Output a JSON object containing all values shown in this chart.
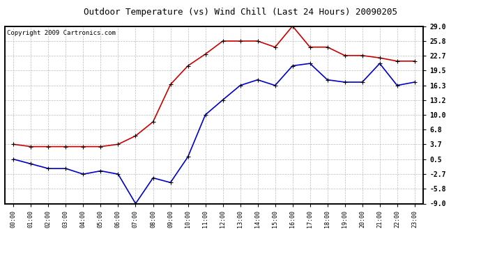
{
  "title": "Outdoor Temperature (vs) Wind Chill (Last 24 Hours) 20090205",
  "copyright": "Copyright 2009 Cartronics.com",
  "hours": [
    "00:00",
    "01:00",
    "02:00",
    "03:00",
    "04:00",
    "05:00",
    "06:00",
    "07:00",
    "08:00",
    "09:00",
    "10:00",
    "11:00",
    "12:00",
    "13:00",
    "14:00",
    "15:00",
    "16:00",
    "17:00",
    "18:00",
    "19:00",
    "20:00",
    "21:00",
    "22:00",
    "23:00"
  ],
  "red_data": [
    3.7,
    3.2,
    3.2,
    3.2,
    3.2,
    3.2,
    3.7,
    5.5,
    8.5,
    16.5,
    20.5,
    23.0,
    25.8,
    25.8,
    25.8,
    24.5,
    29.0,
    24.5,
    24.5,
    22.7,
    22.7,
    22.2,
    21.5,
    21.5
  ],
  "blue_data": [
    0.5,
    -0.5,
    -1.5,
    -1.5,
    -2.7,
    -2.0,
    -2.7,
    -9.0,
    -3.5,
    -4.5,
    1.0,
    10.0,
    13.2,
    16.3,
    17.5,
    16.3,
    20.5,
    21.0,
    17.5,
    17.0,
    17.0,
    21.0,
    16.3,
    17.0
  ],
  "yticks": [
    29.0,
    25.8,
    22.7,
    19.5,
    16.3,
    13.2,
    10.0,
    6.8,
    3.7,
    0.5,
    -2.7,
    -5.8,
    -9.0
  ],
  "ylim": [
    -9.0,
    29.0
  ],
  "red_color": "#cc0000",
  "blue_color": "#0000cc",
  "bg_color": "#ffffff",
  "plot_bg_color": "#ffffff",
  "grid_color": "#bbbbbb",
  "title_fontsize": 9,
  "copyright_fontsize": 6.5
}
